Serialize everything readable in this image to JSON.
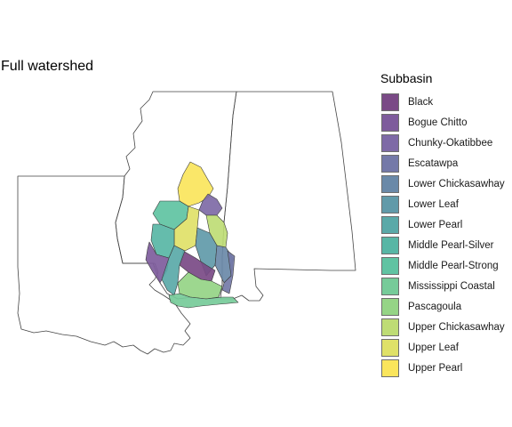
{
  "title": "Full watershed",
  "legend": {
    "title": "Subbasin",
    "items": [
      {
        "label": "Black",
        "color": "#7a4a86"
      },
      {
        "label": "Bogue Chitto",
        "color": "#7e5c9c"
      },
      {
        "label": "Chunky-Okatibbee",
        "color": "#7e6aa6"
      },
      {
        "label": "Escatawpa",
        "color": "#7479a8"
      },
      {
        "label": "Lower Chickasawhay",
        "color": "#6a89a8"
      },
      {
        "label": "Lower Leaf",
        "color": "#619aa9"
      },
      {
        "label": "Lower Pearl",
        "color": "#5aa9a8"
      },
      {
        "label": "Middle Pearl-Silver",
        "color": "#58b6a5"
      },
      {
        "label": "Middle Pearl-Strong",
        "color": "#60c3a2"
      },
      {
        "label": "Mississippi Coastal",
        "color": "#76cb99"
      },
      {
        "label": "Pascagoula",
        "color": "#95d486"
      },
      {
        "label": "Upper Chickasawhay",
        "color": "#bedc75"
      },
      {
        "label": "Upper Leaf",
        "color": "#dfe168"
      },
      {
        "label": "Upper Pearl",
        "color": "#fae55c"
      }
    ]
  },
  "outline_color": "#444444"
}
